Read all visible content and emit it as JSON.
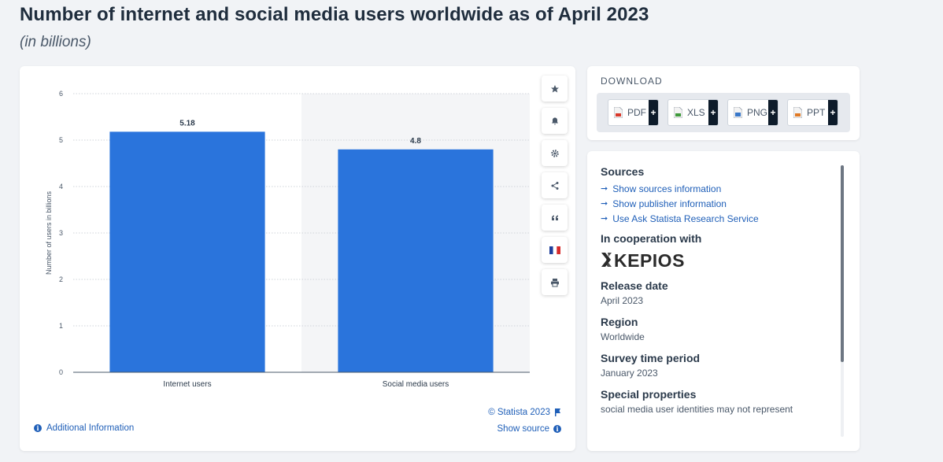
{
  "page": {
    "title": "Number of internet and social media users worldwide as of April 2023",
    "subtitle": "(in billions)"
  },
  "chart_data": {
    "type": "bar",
    "categories": [
      "Internet users",
      "Social media users"
    ],
    "values": [
      5.18,
      4.8
    ],
    "value_labels": [
      "5.18",
      "4.8"
    ],
    "ylabel": "Number of users in billions",
    "xlabel": "",
    "ylim": [
      0,
      6
    ],
    "yticks": [
      0,
      1,
      2,
      3,
      4,
      5,
      6
    ],
    "grid": true,
    "bar_color": "#2a74dc"
  },
  "chart_footer": {
    "credit": "© Statista 2023",
    "additional_info": "Additional Information",
    "show_source": "Show source"
  },
  "toolbar": {
    "icons": [
      "star-icon",
      "bell-icon",
      "gear-icon",
      "share-icon",
      "quote-icon",
      "french-flag-icon",
      "print-icon"
    ]
  },
  "download": {
    "title": "DOWNLOAD",
    "buttons": [
      {
        "label": "PDF",
        "plus": "+",
        "color": "#d9392b"
      },
      {
        "label": "XLS",
        "plus": "+",
        "color": "#3f9a3c"
      },
      {
        "label": "PNG",
        "plus": "+",
        "color": "#3a78c9"
      },
      {
        "label": "PPT",
        "plus": "+",
        "color": "#e07a25"
      }
    ]
  },
  "info": {
    "sources_heading": "Sources",
    "links": [
      "Show sources information",
      "Show publisher information",
      "Use Ask Statista Research Service"
    ],
    "cooperation_heading": "In cooperation with",
    "cooperation_logo_text": "KEPIOS",
    "release_heading": "Release date",
    "release_value": "April 2023",
    "region_heading": "Region",
    "region_value": "Worldwide",
    "survey_heading": "Survey time period",
    "survey_value": "January 2023",
    "special_heading": "Special properties",
    "special_value": "social media user identities may not represent"
  }
}
